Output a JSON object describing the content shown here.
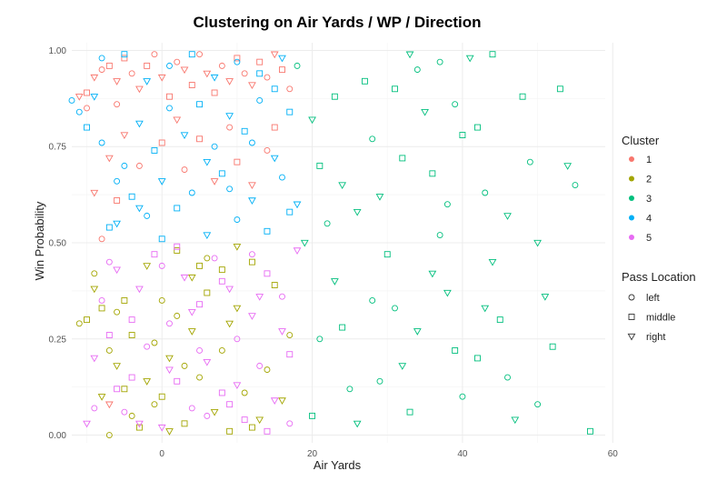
{
  "chart_data": {
    "type": "scatter",
    "title": "Clustering on Air Yards / WP / Direction",
    "xlabel": "Air Yards",
    "ylabel": "Win Probability",
    "xlim": [
      -12,
      59
    ],
    "ylim": [
      -0.02,
      1.02
    ],
    "x_ticks": [
      0,
      20,
      40,
      60
    ],
    "x_tick_labels": [
      "0",
      "20",
      "40",
      "60"
    ],
    "y_ticks": [
      0,
      0.25,
      0.5,
      0.75,
      1.0
    ],
    "y_tick_labels": [
      "0.00",
      "0.25",
      "0.50",
      "0.75",
      "1.00"
    ],
    "grid": true,
    "legend_position": "right",
    "cluster_legend": {
      "title": "Cluster",
      "items": [
        {
          "label": "1",
          "color": "#F8766D"
        },
        {
          "label": "2",
          "color": "#A3A500"
        },
        {
          "label": "3",
          "color": "#00BF7D"
        },
        {
          "label": "4",
          "color": "#00B0F6"
        },
        {
          "label": "5",
          "color": "#E76BF3"
        }
      ]
    },
    "shape_legend": {
      "title": "Pass Location",
      "items": [
        {
          "label": "left",
          "shape": "circle"
        },
        {
          "label": "middle",
          "shape": "square"
        },
        {
          "label": "right",
          "shape": "triangle-down"
        }
      ]
    },
    "series": [
      {
        "cluster": "1",
        "points": [
          [
            -11,
            0.88
          ],
          [
            -10,
            0.89
          ],
          [
            -10,
            0.85
          ],
          [
            -9,
            0.93
          ],
          [
            -8,
            0.95
          ],
          [
            -7,
            0.96
          ],
          [
            -7,
            0.72
          ],
          [
            -6,
            0.86
          ],
          [
            -6,
            0.92
          ],
          [
            -5,
            0.98
          ],
          [
            -4,
            0.94
          ],
          [
            -3,
            0.9
          ],
          [
            -2,
            0.96
          ],
          [
            -1,
            0.99
          ],
          [
            0,
            0.93
          ],
          [
            1,
            0.88
          ],
          [
            2,
            0.97
          ],
          [
            3,
            0.95
          ],
          [
            4,
            0.91
          ],
          [
            5,
            0.99
          ],
          [
            6,
            0.94
          ],
          [
            7,
            0.89
          ],
          [
            8,
            0.96
          ],
          [
            9,
            0.92
          ],
          [
            10,
            0.98
          ],
          [
            11,
            0.94
          ],
          [
            12,
            0.91
          ],
          [
            13,
            0.97
          ],
          [
            14,
            0.93
          ],
          [
            15,
            0.99
          ],
          [
            16,
            0.95
          ],
          [
            17,
            0.9
          ],
          [
            -9,
            0.63
          ],
          [
            -8,
            0.51
          ],
          [
            -6,
            0.61
          ],
          [
            -5,
            0.78
          ],
          [
            -3,
            0.7
          ],
          [
            0,
            0.76
          ],
          [
            2,
            0.82
          ],
          [
            3,
            0.69
          ],
          [
            5,
            0.77
          ],
          [
            7,
            0.66
          ],
          [
            9,
            0.8
          ],
          [
            10,
            0.71
          ],
          [
            12,
            0.65
          ],
          [
            14,
            0.74
          ],
          [
            15,
            0.8
          ],
          [
            -7,
            0.08
          ]
        ],
        "shapes": [
          2,
          1,
          0,
          2,
          0,
          1,
          2,
          0,
          2,
          1,
          0,
          2,
          1,
          0,
          2,
          1,
          0,
          2,
          1,
          0,
          2,
          1,
          0,
          2,
          1,
          0,
          2,
          1,
          0,
          2,
          1,
          0,
          2,
          0,
          1,
          2,
          0,
          1,
          2,
          0,
          1,
          2,
          0,
          1,
          2,
          0,
          1,
          2
        ]
      },
      {
        "cluster": "2",
        "points": [
          [
            -11,
            0.29
          ],
          [
            -10,
            0.3
          ],
          [
            -9,
            0.42
          ],
          [
            -9,
            0.38
          ],
          [
            -8,
            0.33
          ],
          [
            -7,
            0.22
          ],
          [
            -6,
            0.18
          ],
          [
            -5,
            0.12
          ],
          [
            -4,
            0.05
          ],
          [
            -3,
            0.02
          ],
          [
            -2,
            0.14
          ],
          [
            -1,
            0.08
          ],
          [
            0,
            0.1
          ],
          [
            1,
            0.2
          ],
          [
            2,
            0.31
          ],
          [
            3,
            0.03
          ],
          [
            4,
            0.27
          ],
          [
            5,
            0.15
          ],
          [
            6,
            0.37
          ],
          [
            7,
            0.06
          ],
          [
            8,
            0.22
          ],
          [
            9,
            0.01
          ],
          [
            10,
            0.33
          ],
          [
            11,
            0.11
          ],
          [
            12,
            0.45
          ],
          [
            13,
            0.04
          ],
          [
            14,
            0.17
          ],
          [
            15,
            0.39
          ],
          [
            16,
            0.09
          ],
          [
            17,
            0.26
          ],
          [
            -8,
            0.1
          ],
          [
            -6,
            0.32
          ],
          [
            -4,
            0.26
          ],
          [
            -2,
            0.44
          ],
          [
            0,
            0.35
          ],
          [
            2,
            0.48
          ],
          [
            4,
            0.41
          ],
          [
            6,
            0.46
          ],
          [
            8,
            0.43
          ],
          [
            10,
            0.49
          ],
          [
            -7,
            0.0
          ],
          [
            -5,
            0.35
          ],
          [
            1,
            0.01
          ],
          [
            3,
            0.18
          ],
          [
            5,
            0.44
          ],
          [
            9,
            0.29
          ],
          [
            -1,
            0.24
          ],
          [
            12,
            0.02
          ]
        ],
        "shapes": [
          0,
          1,
          0,
          2,
          1,
          0,
          2,
          1,
          0,
          1,
          2,
          0,
          1,
          2,
          0,
          1,
          2,
          0,
          1,
          2,
          0,
          1,
          2,
          0,
          1,
          2,
          0,
          1,
          2,
          0,
          2,
          0,
          1,
          2,
          0,
          1,
          2,
          0,
          1,
          2,
          0,
          1,
          2,
          0,
          1,
          2,
          0,
          1
        ]
      },
      {
        "cluster": "3",
        "points": [
          [
            18,
            0.96
          ],
          [
            20,
            0.82
          ],
          [
            21,
            0.7
          ],
          [
            22,
            0.55
          ],
          [
            23,
            0.4
          ],
          [
            24,
            0.28
          ],
          [
            25,
            0.12
          ],
          [
            26,
            0.03
          ],
          [
            27,
            0.92
          ],
          [
            28,
            0.77
          ],
          [
            29,
            0.62
          ],
          [
            30,
            0.47
          ],
          [
            31,
            0.33
          ],
          [
            32,
            0.18
          ],
          [
            33,
            0.06
          ],
          [
            34,
            0.95
          ],
          [
            35,
            0.84
          ],
          [
            36,
            0.68
          ],
          [
            37,
            0.52
          ],
          [
            38,
            0.37
          ],
          [
            39,
            0.22
          ],
          [
            40,
            0.1
          ],
          [
            41,
            0.98
          ],
          [
            42,
            0.8
          ],
          [
            43,
            0.63
          ],
          [
            44,
            0.45
          ],
          [
            45,
            0.3
          ],
          [
            46,
            0.15
          ],
          [
            47,
            0.04
          ],
          [
            48,
            0.88
          ],
          [
            49,
            0.71
          ],
          [
            50,
            0.5
          ],
          [
            51,
            0.36
          ],
          [
            52,
            0.23
          ],
          [
            53,
            0.9
          ],
          [
            54,
            0.7
          ],
          [
            55,
            0.65
          ],
          [
            57,
            0.01
          ],
          [
            19,
            0.5
          ],
          [
            21,
            0.25
          ],
          [
            23,
            0.88
          ],
          [
            26,
            0.58
          ],
          [
            29,
            0.14
          ],
          [
            32,
            0.72
          ],
          [
            36,
            0.42
          ],
          [
            39,
            0.86
          ],
          [
            42,
            0.2
          ],
          [
            46,
            0.57
          ],
          [
            50,
            0.08
          ],
          [
            44,
            0.99
          ],
          [
            33,
            0.99
          ],
          [
            37,
            0.97
          ],
          [
            20,
            0.05
          ],
          [
            24,
            0.65
          ],
          [
            28,
            0.35
          ],
          [
            31,
            0.9
          ],
          [
            34,
            0.27
          ],
          [
            38,
            0.6
          ],
          [
            40,
            0.78
          ],
          [
            43,
            0.33
          ]
        ],
        "shapes": [
          0,
          2,
          1,
          0,
          2,
          1,
          0,
          2,
          1,
          0,
          2,
          1,
          0,
          2,
          1,
          0,
          2,
          1,
          0,
          2,
          1,
          0,
          2,
          1,
          0,
          2,
          1,
          0,
          2,
          1,
          0,
          2,
          2,
          1,
          1,
          2,
          0,
          1,
          2,
          0,
          1,
          2,
          0,
          1,
          2,
          0,
          1,
          2,
          0,
          1,
          2,
          0,
          1,
          2,
          0,
          1,
          2,
          0,
          1,
          2
        ]
      },
      {
        "cluster": "4",
        "points": [
          [
            -12,
            0.87
          ],
          [
            -11,
            0.84
          ],
          [
            -10,
            0.8
          ],
          [
            -9,
            0.88
          ],
          [
            -8,
            0.76
          ],
          [
            -7,
            0.54
          ],
          [
            -6,
            0.55
          ],
          [
            -5,
            0.7
          ],
          [
            -4,
            0.62
          ],
          [
            -3,
            0.81
          ],
          [
            -2,
            0.57
          ],
          [
            -1,
            0.74
          ],
          [
            0,
            0.66
          ],
          [
            1,
            0.85
          ],
          [
            2,
            0.59
          ],
          [
            3,
            0.78
          ],
          [
            4,
            0.63
          ],
          [
            5,
            0.86
          ],
          [
            6,
            0.52
          ],
          [
            7,
            0.75
          ],
          [
            8,
            0.68
          ],
          [
            9,
            0.83
          ],
          [
            10,
            0.56
          ],
          [
            11,
            0.79
          ],
          [
            12,
            0.61
          ],
          [
            13,
            0.87
          ],
          [
            14,
            0.53
          ],
          [
            15,
            0.72
          ],
          [
            16,
            0.67
          ],
          [
            17,
            0.84
          ],
          [
            18,
            0.6
          ],
          [
            -8,
            0.98
          ],
          [
            -5,
            0.99
          ],
          [
            -2,
            0.92
          ],
          [
            1,
            0.96
          ],
          [
            4,
            0.99
          ],
          [
            7,
            0.93
          ],
          [
            10,
            0.97
          ],
          [
            13,
            0.94
          ],
          [
            16,
            0.98
          ],
          [
            -6,
            0.66
          ],
          [
            0,
            0.51
          ],
          [
            6,
            0.71
          ],
          [
            12,
            0.76
          ],
          [
            17,
            0.58
          ],
          [
            -3,
            0.59
          ],
          [
            9,
            0.64
          ],
          [
            15,
            0.9
          ]
        ],
        "shapes": [
          0,
          0,
          1,
          2,
          0,
          1,
          2,
          0,
          1,
          2,
          0,
          1,
          2,
          0,
          1,
          2,
          0,
          1,
          2,
          0,
          1,
          2,
          0,
          1,
          2,
          0,
          1,
          2,
          0,
          1,
          2,
          0,
          1,
          2,
          0,
          1,
          2,
          0,
          1,
          2,
          0,
          1,
          2,
          0,
          1,
          2,
          0,
          1
        ]
      },
      {
        "cluster": "5",
        "points": [
          [
            -10,
            0.03
          ],
          [
            -9,
            0.2
          ],
          [
            -8,
            0.35
          ],
          [
            -7,
            0.26
          ],
          [
            -6,
            0.43
          ],
          [
            -5,
            0.06
          ],
          [
            -4,
            0.15
          ],
          [
            -3,
            0.38
          ],
          [
            -2,
            0.23
          ],
          [
            -1,
            0.47
          ],
          [
            0,
            0.02
          ],
          [
            1,
            0.29
          ],
          [
            2,
            0.14
          ],
          [
            3,
            0.41
          ],
          [
            4,
            0.07
          ],
          [
            5,
            0.34
          ],
          [
            6,
            0.19
          ],
          [
            7,
            0.46
          ],
          [
            8,
            0.11
          ],
          [
            9,
            0.38
          ],
          [
            10,
            0.25
          ],
          [
            11,
            0.04
          ],
          [
            12,
            0.31
          ],
          [
            13,
            0.18
          ],
          [
            14,
            0.42
          ],
          [
            15,
            0.09
          ],
          [
            16,
            0.36
          ],
          [
            17,
            0.21
          ],
          [
            18,
            0.48
          ],
          [
            -9,
            0.07
          ],
          [
            -6,
            0.12
          ],
          [
            -3,
            0.03
          ],
          [
            0,
            0.44
          ],
          [
            2,
            0.49
          ],
          [
            4,
            0.32
          ],
          [
            6,
            0.05
          ],
          [
            8,
            0.4
          ],
          [
            10,
            0.13
          ],
          [
            12,
            0.47
          ],
          [
            14,
            0.01
          ],
          [
            16,
            0.27
          ],
          [
            -7,
            0.45
          ],
          [
            -4,
            0.3
          ],
          [
            1,
            0.17
          ],
          [
            5,
            0.22
          ],
          [
            9,
            0.08
          ],
          [
            13,
            0.36
          ],
          [
            17,
            0.03
          ]
        ],
        "shapes": [
          2,
          2,
          0,
          1,
          2,
          0,
          1,
          2,
          0,
          1,
          2,
          0,
          1,
          2,
          0,
          1,
          2,
          0,
          1,
          2,
          0,
          1,
          2,
          0,
          1,
          2,
          0,
          1,
          2,
          0,
          1,
          2,
          0,
          1,
          2,
          0,
          1,
          2,
          0,
          1,
          2,
          0,
          1,
          2,
          0,
          1,
          2,
          0
        ]
      }
    ]
  }
}
